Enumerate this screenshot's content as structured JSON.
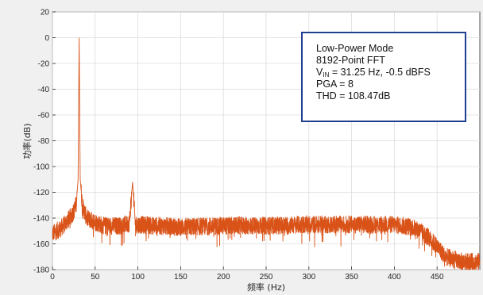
{
  "chart_data": {
    "type": "line",
    "title": "",
    "xlabel": "频率 (Hz)",
    "ylabel": "功率(dB)",
    "xlim": [
      0,
      500
    ],
    "ylim": [
      -180,
      20
    ],
    "xticks": [
      0,
      50,
      100,
      150,
      200,
      250,
      300,
      350,
      400,
      450
    ],
    "yticks": [
      20,
      0,
      -20,
      -40,
      -60,
      -80,
      -100,
      -120,
      -140,
      -160,
      -180
    ],
    "grid": true,
    "series": [
      {
        "color": "#d95319",
        "noise_floor_points": [
          [
            0,
            -152
          ],
          [
            10,
            -148
          ],
          [
            20,
            -140
          ],
          [
            25,
            -135
          ],
          [
            28,
            -128
          ],
          [
            30,
            -110
          ],
          [
            31.25,
            0
          ],
          [
            32.5,
            -110
          ],
          [
            35,
            -130
          ],
          [
            40,
            -140
          ],
          [
            60,
            -146
          ],
          [
            80,
            -146
          ],
          [
            90,
            -144
          ],
          [
            93.75,
            -112
          ],
          [
            97,
            -145
          ],
          [
            150,
            -147
          ],
          [
            200,
            -146
          ],
          [
            250,
            -146
          ],
          [
            300,
            -145
          ],
          [
            350,
            -145
          ],
          [
            400,
            -145
          ],
          [
            420,
            -147
          ],
          [
            430,
            -150
          ],
          [
            440,
            -155
          ],
          [
            450,
            -162
          ],
          [
            460,
            -170
          ],
          [
            480,
            -174
          ],
          [
            500,
            -174
          ]
        ]
      }
    ],
    "annotation": {
      "lines": [
        "Low-Power Mode",
        "8192-Point FFT",
        "V",
        "IN",
        " = 31.25 Hz, -0.5 dBFS",
        "PGA = 8",
        "THD = 108.47dB"
      ],
      "border_color": "#1f3f8f"
    },
    "colors": {
      "line": "#d95319",
      "grid": "#dcdcdc",
      "axes_bg": "#ffffff",
      "figure_bg": "#f0f0f0"
    }
  }
}
